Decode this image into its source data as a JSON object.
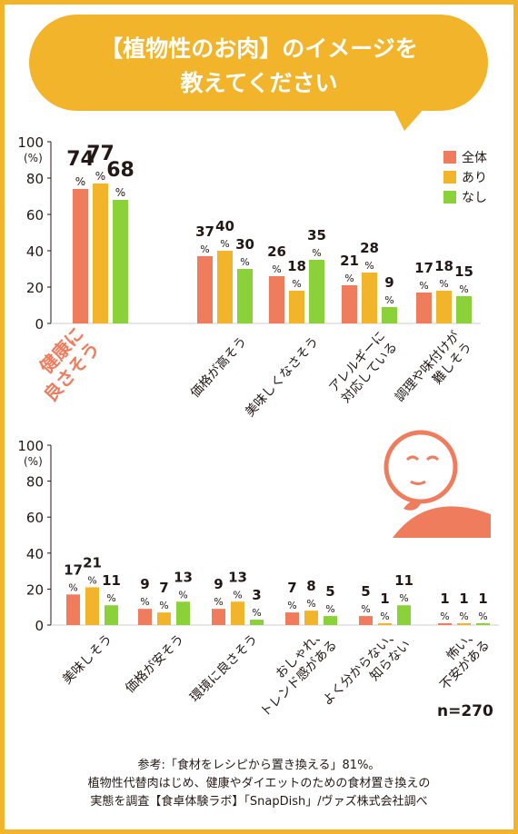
{
  "header": {
    "line1": "【植物性のお肉】のイメージを",
    "line2": "教えてください"
  },
  "colors": {
    "frame": "#f2b42a",
    "bubble": "#f2b42a",
    "series_all": "#f07c5e",
    "series_ari": "#f2b42a",
    "series_nashi": "#8bd23a",
    "highlight_label": "#f07c5e",
    "text": "#231815"
  },
  "legend": [
    "全体",
    "あり",
    "なし"
  ],
  "sample_size": "n=270",
  "icon": "thinking-person-icon",
  "chart_data": [
    {
      "type": "bar",
      "ylabel": "(%)",
      "ylim": [
        0,
        100
      ],
      "yticks": [
        "0",
        "20",
        "40",
        "60",
        "80",
        "100"
      ],
      "categories": [
        [
          "健康に",
          "良さそう"
        ],
        [
          "価格が高そう"
        ],
        [
          "美味しくなさそう"
        ],
        [
          "アレルギーに",
          "対応している"
        ],
        [
          "調理や味付けが",
          "難しそう"
        ]
      ],
      "highlight_category": 0,
      "series": [
        {
          "name": "全体",
          "values": [
            74,
            37,
            26,
            21,
            17
          ]
        },
        {
          "name": "あり",
          "values": [
            77,
            40,
            18,
            28,
            18
          ]
        },
        {
          "name": "なし",
          "values": [
            68,
            30,
            35,
            9,
            15
          ]
        }
      ]
    },
    {
      "type": "bar",
      "ylabel": "(%)",
      "ylim": [
        0,
        100
      ],
      "yticks": [
        "0",
        "20",
        "40",
        "60",
        "80",
        "100"
      ],
      "categories": [
        [
          "美味しそう"
        ],
        [
          "価格が安そう"
        ],
        [
          "環境に良さそう"
        ],
        [
          "おしゃれ、",
          "トレンド感がある"
        ],
        [
          "よく分からない、",
          "知らない"
        ],
        [
          "怖い、",
          "不安がある"
        ]
      ],
      "series": [
        {
          "name": "全体",
          "values": [
            17,
            9,
            9,
            7,
            5,
            1
          ]
        },
        {
          "name": "あり",
          "values": [
            21,
            7,
            13,
            8,
            1,
            1
          ]
        },
        {
          "name": "なし",
          "values": [
            11,
            13,
            3,
            5,
            11,
            1
          ]
        }
      ]
    }
  ],
  "footnote": {
    "line1": "参考:「食材をレシピから置き換える」81%。",
    "line2": "植物性代替肉はじめ、健康やダイエットのための食材置き換えの",
    "line3": "実態を調査【食卓体験ラボ】「SnapDish」/ヴァズ株式会社調べ"
  }
}
